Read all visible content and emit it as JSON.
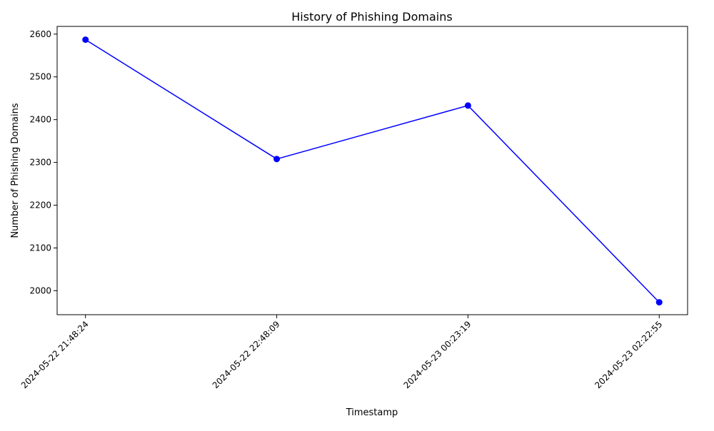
{
  "chart_data": {
    "type": "line",
    "title": "History of Phishing Domains",
    "xlabel": "Timestamp",
    "ylabel": "Number of Phishing Domains",
    "categories": [
      "2024-05-22 21:48:24",
      "2024-05-22 22:48:09",
      "2024-05-23 00:23:19",
      "2024-05-23 02:22:55"
    ],
    "series": [
      {
        "values": [
          2587,
          2308,
          2433,
          1973
        ],
        "color": "#0000ff",
        "marker": "circle"
      }
    ],
    "yticks": [
      2000,
      2100,
      2200,
      2300,
      2400,
      2500,
      2600
    ],
    "ylim": [
      1944,
      2618
    ],
    "xtick_rotation": 45,
    "grid": false,
    "legend": "none"
  }
}
